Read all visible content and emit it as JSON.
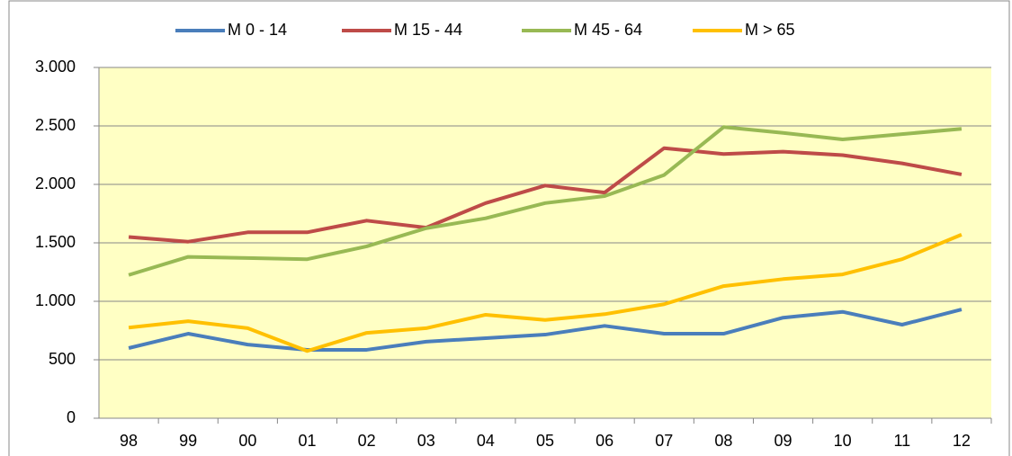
{
  "chart_data": {
    "type": "line",
    "categories": [
      "98",
      "99",
      "00",
      "01",
      "02",
      "03",
      "04",
      "05",
      "06",
      "07",
      "08",
      "09",
      "10",
      "11",
      "12"
    ],
    "series": [
      {
        "name": "M 0 - 14",
        "color": "#4a7ebb",
        "values": [
          600,
          723,
          630,
          585,
          585,
          655,
          685,
          715,
          790,
          723,
          723,
          860,
          910,
          800,
          930
        ]
      },
      {
        "name": "M 15 - 44",
        "color": "#be4b48",
        "values": [
          1550,
          1510,
          1590,
          1590,
          1690,
          1630,
          1840,
          1990,
          1930,
          2310,
          2260,
          2280,
          2250,
          2180,
          2085
        ]
      },
      {
        "name": "M 45 - 64",
        "color": "#98b954",
        "values": [
          1225,
          1380,
          1370,
          1360,
          1470,
          1625,
          1710,
          1840,
          1900,
          2080,
          2490,
          2440,
          2385,
          2430,
          2475
        ]
      },
      {
        "name": "M > 65",
        "color": "#ffc000",
        "values": [
          775,
          830,
          770,
          575,
          730,
          770,
          885,
          840,
          890,
          975,
          1130,
          1190,
          1230,
          1360,
          1570
        ]
      }
    ],
    "ylim": [
      0,
      3000
    ],
    "yticks": [
      0,
      500,
      {
        "value": 1000,
        "label": "1.000"
      },
      {
        "value": 1500,
        "label": "1.500"
      },
      {
        "value": 2000,
        "label": "2.000"
      },
      {
        "value": 2500,
        "label": "2.500"
      },
      {
        "value": 3000,
        "label": "3.000"
      }
    ],
    "grid": true,
    "legend": "top"
  }
}
